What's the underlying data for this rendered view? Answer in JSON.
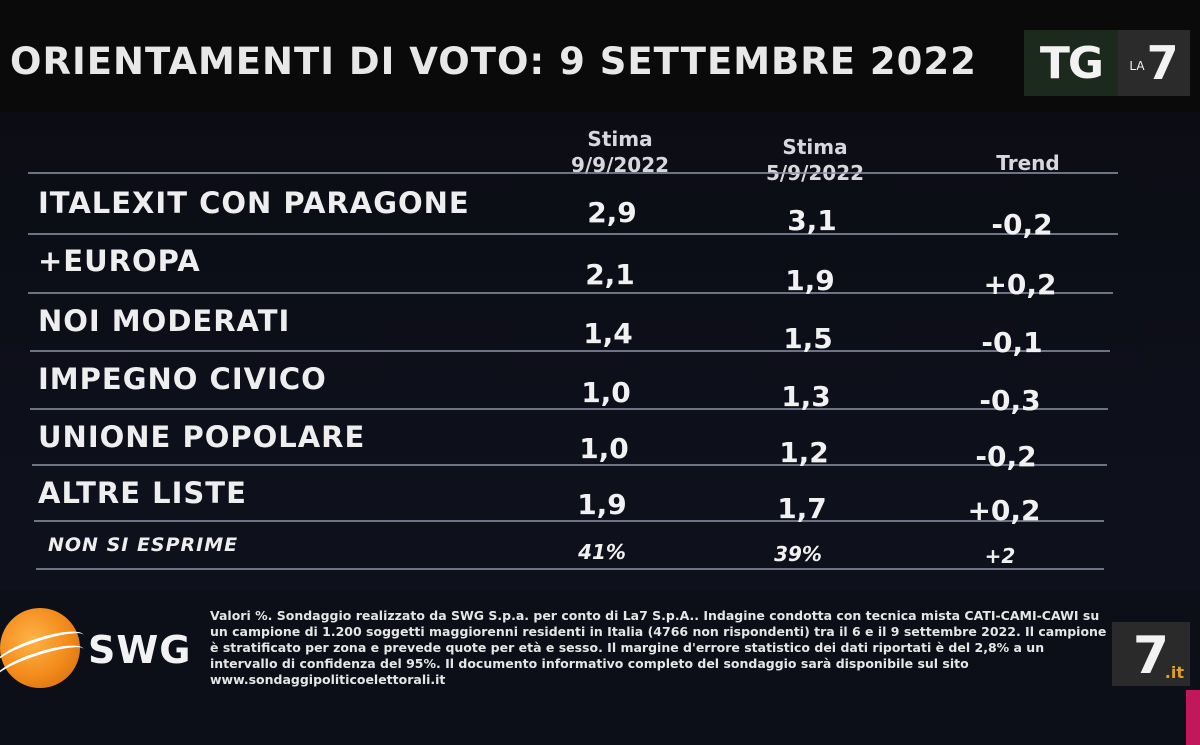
{
  "title": "ORIENTAMENTI DI VOTO: 9 SETTEMBRE 2022",
  "logo": {
    "tg": "TG",
    "la": "LA",
    "seven": "7"
  },
  "columns": {
    "col1": [
      "Stima",
      "9/9/2022"
    ],
    "col2": [
      "Stima",
      "5/9/2022"
    ],
    "col3": "Trend"
  },
  "rows": [
    {
      "label": "ITALEXIT CON PARAGONE",
      "v1": "2,9",
      "v2": "3,1",
      "trend": "-0,2"
    },
    {
      "label": "+EUROPA",
      "v1": "2,1",
      "v2": "1,9",
      "trend": "+0,2"
    },
    {
      "label": "NOI MODERATI",
      "v1": "1,4",
      "v2": "1,5",
      "trend": "-0,1"
    },
    {
      "label": "IMPEGNO CIVICO",
      "v1": "1,0",
      "v2": "1,3",
      "trend": "-0,3"
    },
    {
      "label": "UNIONE POPOLARE",
      "v1": "1,0",
      "v2": "1,2",
      "trend": "-0,2"
    },
    {
      "label": "ALTRE LISTE",
      "v1": "1,9",
      "v2": "1,7",
      "trend": "+0,2"
    },
    {
      "label": "NON SI ESPRIME",
      "v1": "41%",
      "v2": "39%",
      "trend": "+2"
    }
  ],
  "footer": {
    "brand": "SWG",
    "note": "Valori %. Sondaggio realizzato da SWG S.p.a. per conto di La7 S.p.A.. Indagine condotta con tecnica mista CATI-CAMI-CAWI su un campione di 1.200 soggetti maggiorenni residenti in Italia (4766 non rispondenti) tra il 6 e il 9 settembre 2022. Il campione è stratificato per zona e prevede quote per età e sesso. Il margine d'errore statistico dei dati riportati è del 2,8% a un intervallo di confidenza del 95%. Il documento informativo completo del sondaggio sarà disponibile sul sito www.sondaggipoliticoelettorali.it",
    "corner_seven": "7",
    "corner_it": ".it"
  }
}
